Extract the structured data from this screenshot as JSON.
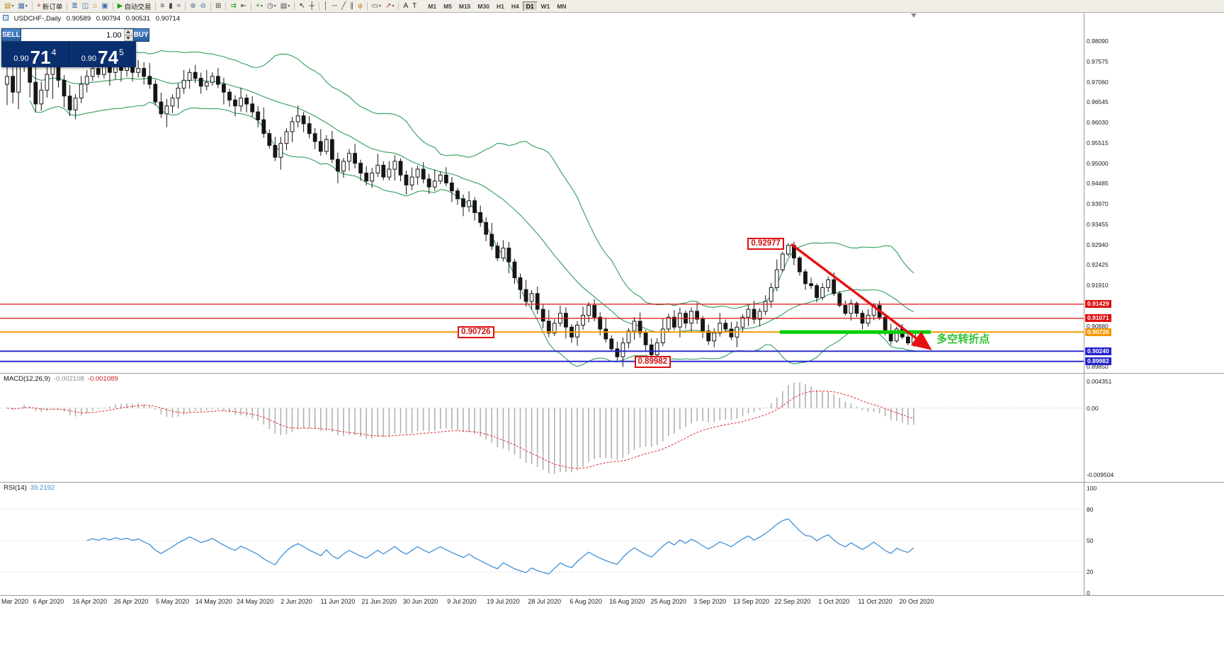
{
  "toolbar": {
    "caret_glyph": "▾",
    "groups": [
      {
        "items": [
          {
            "name": "new-chart-icon",
            "glyph": "▤",
            "color": "#b8860b",
            "caret": true
          },
          {
            "name": "profiles-icon",
            "glyph": "▦",
            "color": "#4a6da7",
            "caret": true
          }
        ]
      },
      {
        "items": [
          {
            "name": "new-order-button",
            "glyph": "+",
            "color": "#c03030",
            "label": "新订单"
          }
        ]
      },
      {
        "items": [
          {
            "name": "market-watch-icon",
            "glyph": "≣",
            "color": "#3a6ea5"
          },
          {
            "name": "data-window-icon",
            "glyph": "◫",
            "color": "#3a6ea5"
          },
          {
            "name": "navigator-icon",
            "glyph": "⌂",
            "color": "#b8860b"
          },
          {
            "name": "terminal-icon",
            "glyph": "▣",
            "color": "#3a6ea5"
          }
        ]
      },
      {
        "items": [
          {
            "name": "autotrading-button",
            "glyph": "▶",
            "color": "#18a018",
            "label": "自动交易"
          }
        ]
      },
      {
        "items": [
          {
            "name": "bar-chart-icon",
            "glyph": "≡",
            "color": "#444444"
          },
          {
            "name": "candlestick-chart-icon",
            "glyph": "▮",
            "color": "#444444"
          },
          {
            "name": "line-chart-icon",
            "glyph": "≈",
            "color": "#444444"
          }
        ]
      },
      {
        "items": [
          {
            "name": "zoom-in-icon",
            "glyph": "⊕",
            "color": "#3a6ea5"
          },
          {
            "name": "zoom-out-icon",
            "glyph": "⊖",
            "color": "#3a6ea5"
          }
        ]
      },
      {
        "items": [
          {
            "name": "tile-windows-icon",
            "glyph": "⊞",
            "color": "#444444"
          }
        ]
      },
      {
        "items": [
          {
            "name": "auto-scroll-icon",
            "glyph": "⇉",
            "color": "#18a018"
          },
          {
            "name": "chart-shift-icon",
            "glyph": "⇤",
            "color": "#444444"
          }
        ]
      },
      {
        "items": [
          {
            "name": "indicators-icon",
            "glyph": "+",
            "color": "#18a018",
            "caret": true
          },
          {
            "name": "periods-icon",
            "glyph": "◷",
            "color": "#444444",
            "caret": true
          },
          {
            "name": "templates-icon",
            "glyph": "▤",
            "color": "#444444",
            "caret": true
          }
        ]
      },
      {
        "items": [
          {
            "name": "cursor-icon",
            "glyph": "↖",
            "color": "#222222"
          },
          {
            "name": "crosshair-icon",
            "glyph": "┼",
            "color": "#222222"
          }
        ]
      },
      {
        "items": [
          {
            "name": "vertical-line-icon",
            "glyph": "│",
            "color": "#444444"
          },
          {
            "name": "horizontal-line-icon",
            "glyph": "─",
            "color": "#444444"
          },
          {
            "name": "trendline-icon",
            "glyph": "╱",
            "color": "#444444"
          },
          {
            "name": "channel-icon",
            "glyph": "∥",
            "color": "#444444"
          },
          {
            "name": "fibonacci-icon",
            "glyph": "φ",
            "color": "#b8860b"
          }
        ]
      },
      {
        "items": [
          {
            "name": "shapes-icon",
            "glyph": "▭",
            "color": "#444444",
            "caret": true
          },
          {
            "name": "arrows-icon",
            "glyph": "↗",
            "color": "#c03030",
            "caret": true
          }
        ]
      },
      {
        "items": [
          {
            "name": "text-icon",
            "glyph": "A",
            "color": "#222222"
          },
          {
            "name": "text-label-icon",
            "glyph": "T",
            "color": "#222222"
          }
        ]
      }
    ],
    "timeframes": {
      "items": [
        "M1",
        "M5",
        "M15",
        "M30",
        "H1",
        "H4",
        "D1",
        "W1",
        "MN"
      ],
      "active": "D1"
    }
  },
  "chart_header": {
    "symbol": "USDCHF-,Daily",
    "open": "0.90589",
    "high": "0.90794",
    "low": "0.90531",
    "close": "0.90714"
  },
  "trade_panel": {
    "sell_label": "SELL",
    "buy_label": "BUY",
    "volume": "1.00",
    "sell_price": {
      "base": "0.90",
      "pips": "71",
      "pipette": "4"
    },
    "buy_price": {
      "base": "0.90",
      "pips": "74",
      "pipette": "5"
    }
  },
  "chart_data": {
    "type": "candlestick",
    "symbol": "USDCHF",
    "timeframe": "Daily",
    "price_axis": {
      "top": 0.9881,
      "bottom": 0.8969,
      "scale_labels": [
        {
          "text": "0.98090",
          "price": 0.9809
        },
        {
          "text": "0.97575",
          "price": 0.97575
        },
        {
          "text": "0.97060",
          "price": 0.9706
        },
        {
          "text": "0.96545",
          "price": 0.96545
        },
        {
          "text": "0.96030",
          "price": 0.9603
        },
        {
          "text": "0.95515",
          "price": 0.95515
        },
        {
          "text": "0.95000",
          "price": 0.95
        },
        {
          "text": "0.94485",
          "price": 0.94485
        },
        {
          "text": "0.93970",
          "price": 0.9397
        },
        {
          "text": "0.93455",
          "price": 0.93455
        },
        {
          "text": "0.92940",
          "price": 0.9294
        },
        {
          "text": "0.92425",
          "price": 0.92425
        },
        {
          "text": "0.91910",
          "price": 0.9191
        },
        {
          "text": "0.90880",
          "price": 0.9088
        },
        {
          "text": "0.89850",
          "price": 0.8985
        }
      ]
    },
    "candles": {
      "first_open": 0.97,
      "closes": [
        0.972,
        0.968,
        0.9755,
        0.9775,
        0.9705,
        0.965,
        0.9685,
        0.9725,
        0.9745,
        0.971,
        0.967,
        0.9635,
        0.9665,
        0.97,
        0.972,
        0.974,
        0.9725,
        0.9745,
        0.973,
        0.975,
        0.9735,
        0.9745,
        0.973,
        0.974,
        0.972,
        0.97,
        0.9655,
        0.9625,
        0.9645,
        0.9665,
        0.969,
        0.971,
        0.973,
        0.9715,
        0.9695,
        0.9705,
        0.972,
        0.97,
        0.968,
        0.966,
        0.9645,
        0.9665,
        0.965,
        0.963,
        0.961,
        0.9575,
        0.9545,
        0.9515,
        0.955,
        0.958,
        0.9605,
        0.962,
        0.96,
        0.9575,
        0.9555,
        0.953,
        0.956,
        0.951,
        0.948,
        0.9505,
        0.9525,
        0.95,
        0.9475,
        0.9455,
        0.9475,
        0.9495,
        0.9465,
        0.9485,
        0.9505,
        0.947,
        0.9445,
        0.9465,
        0.9485,
        0.946,
        0.944,
        0.9455,
        0.947,
        0.945,
        0.943,
        0.941,
        0.939,
        0.9405,
        0.9375,
        0.935,
        0.932,
        0.929,
        0.926,
        0.9285,
        0.925,
        0.921,
        0.918,
        0.915,
        0.917,
        0.913,
        0.91,
        0.907,
        0.9095,
        0.912,
        0.9085,
        0.906,
        0.909,
        0.9115,
        0.914,
        0.911,
        0.908,
        0.9055,
        0.903,
        0.901,
        0.9045,
        0.9075,
        0.91,
        0.907,
        0.904,
        0.9015,
        0.9045,
        0.908,
        0.911,
        0.9085,
        0.912,
        0.9095,
        0.9125,
        0.9105,
        0.9075,
        0.905,
        0.907,
        0.9095,
        0.908,
        0.906,
        0.9085,
        0.911,
        0.913,
        0.9105,
        0.9125,
        0.915,
        0.9185,
        0.923,
        0.927,
        0.9292,
        0.926,
        0.9225,
        0.9195,
        0.919,
        0.916,
        0.9185,
        0.9205,
        0.917,
        0.914,
        0.912,
        0.9145,
        0.912,
        0.9095,
        0.9115,
        0.914,
        0.911,
        0.9075,
        0.905,
        0.908,
        0.906,
        0.9045,
        0.9071
      ],
      "wick_pattern": [
        0.001,
        0.0022,
        0.0008,
        0.0016,
        0.0012,
        0.0026,
        0.0009,
        0.0018,
        0.0014,
        0.0007
      ],
      "volatility_segments": [
        {
          "until": 9,
          "scale": 2.4
        },
        {
          "until": 30,
          "scale": 1.3
        },
        {
          "until": 60,
          "scale": 1.2
        },
        {
          "until": 100,
          "scale": 1.1
        },
        {
          "until": 136,
          "scale": 1.0
        },
        {
          "until": 161,
          "scale": 0.7
        }
      ],
      "special_wicks": {
        "3": {
          "high": 0.9809
        },
        "107": {
          "low": 0.9
        },
        "113": {
          "low": 0.8998
        },
        "137": {
          "high": 0.92977
        },
        "155": {
          "low": 0.904
        },
        "158": {
          "low": 0.9039
        }
      }
    },
    "bollinger": {
      "period": 20,
      "deviations": 2,
      "color": "#2e9e5b"
    },
    "hlines": [
      {
        "price": 0.91429,
        "label": "0.91429",
        "color": "#e01010",
        "width": 1.2,
        "name": "resistance-line-1"
      },
      {
        "price": 0.91071,
        "label": "0.91071",
        "color": "#e01010",
        "width": 1.2,
        "name": "resistance-line-2"
      },
      {
        "price": 0.90726,
        "label": "0.90726",
        "color": "#f59a00",
        "width": 2,
        "name": "pivot-line"
      },
      {
        "price": 0.9024,
        "label": "0.90240",
        "color": "#2222cc",
        "width": 1.8,
        "name": "support-line-1"
      },
      {
        "price": 0.89982,
        "label": "0.89982",
        "color": "#2222cc",
        "width": 1.8,
        "name": "support-line-2"
      }
    ],
    "callouts": [
      {
        "text": "0.92977",
        "index": 137,
        "price": 0.92977,
        "side": "left",
        "name": "price-callout-high"
      },
      {
        "text": "0.90726",
        "index": 79,
        "price": 0.90726,
        "side": "right",
        "name": "price-callout-pivot"
      },
      {
        "text": "0.89982",
        "index": 110,
        "price": 0.89982,
        "side": "right",
        "name": "price-callout-low"
      }
    ],
    "annotations": {
      "support_segment": {
        "price": 0.90726,
        "from_index": 135.5,
        "to_index": 162,
        "color": "#00cf00"
      },
      "trend_arrow": {
        "from": {
          "index": 137.5,
          "price": 0.9295
        },
        "to": {
          "index": 161.5,
          "price": 0.9034
        },
        "color": "#e81010"
      },
      "pivot_text": {
        "text": "多空转折点",
        "index": 163,
        "price": 0.9059,
        "color": "#2fc32f"
      }
    },
    "macd": {
      "label": "MACD(12,26,9)",
      "value_main": "-0.002108",
      "value_signal": "-0.001089",
      "scale_labels": {
        "top": "0.004351",
        "zero": "0.00",
        "bottom": "-0.009504"
      },
      "histogram_color": "#b0b0b0",
      "signal_color": "#e03030"
    },
    "rsi": {
      "label": "RSI(14)",
      "value": "39.2192",
      "period": 14,
      "line_color": "#4090d8",
      "levels": [
        {
          "label": "100",
          "value": 100
        },
        {
          "label": "80",
          "value": 80
        },
        {
          "label": "50",
          "value": 50
        },
        {
          "label": "20",
          "value": 20
        },
        {
          "label": "0",
          "value": 0
        }
      ]
    },
    "dates": {
      "candles_per_label": 7.25,
      "labels": [
        "Mar 2020",
        "6 Apr 2020",
        "16 Apr 2020",
        "26 Apr 2020",
        "5 May 2020",
        "14 May 2020",
        "24 May 2020",
        "2 Jun 2020",
        "11 Jun 2020",
        "21 Jun 2020",
        "30 Jun 2020",
        "9 Jul 2020",
        "19 Jul 2020",
        "28 Jul 2020",
        "6 Aug 2020",
        "16 Aug 2020",
        "25 Aug 2020",
        "3 Sep 2020",
        "13 Sep 2020",
        "22 Sep 2020",
        "1 Oct 2020",
        "11 Oct 2020",
        "20 Oct 2020"
      ]
    }
  }
}
